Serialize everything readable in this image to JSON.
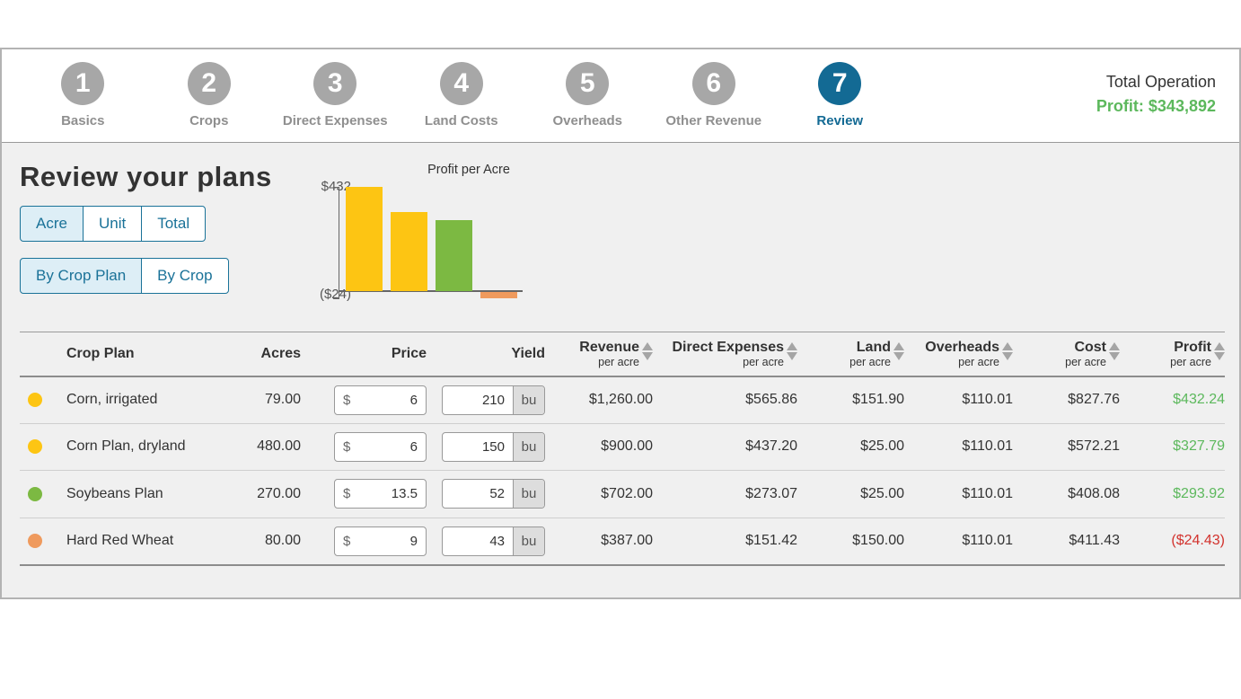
{
  "header": {
    "steps": [
      {
        "num": "1",
        "label": "Basics",
        "active": false
      },
      {
        "num": "2",
        "label": "Crops",
        "active": false
      },
      {
        "num": "3",
        "label": "Direct Expenses",
        "active": false
      },
      {
        "num": "4",
        "label": "Land Costs",
        "active": false
      },
      {
        "num": "5",
        "label": "Overheads",
        "active": false
      },
      {
        "num": "6",
        "label": "Other Revenue",
        "active": false
      },
      {
        "num": "7",
        "label": "Review",
        "active": true
      }
    ],
    "total_operation_label": "Total Operation",
    "total_profit_label": "Profit: $343,892"
  },
  "content": {
    "title": "Review your plans",
    "view_toggle": {
      "options": [
        "Acre",
        "Unit",
        "Total"
      ],
      "selected": "Acre"
    },
    "group_toggle": {
      "options": [
        "By Crop Plan",
        "By Crop"
      ],
      "selected": "By Crop Plan"
    }
  },
  "chart_data": {
    "type": "bar",
    "title": "Profit per Acre",
    "categories": [
      "Corn, irrigated",
      "Corn Plan, dryland",
      "Soybeans Plan",
      "Hard Red Wheat"
    ],
    "values": [
      432.24,
      327.79,
      293.92,
      -24.43
    ],
    "bar_colors": [
      "#fdc513",
      "#fdc513",
      "#7cb942",
      "#ef9a5d"
    ],
    "y_top_label": "$432",
    "y_bottom_label": "($24)",
    "ylim": [
      -24,
      432
    ],
    "grid": false,
    "legend": "none"
  },
  "table": {
    "columns": {
      "crop_plan": {
        "label": "Crop Plan"
      },
      "acres": {
        "label": "Acres"
      },
      "price": {
        "label": "Price"
      },
      "yield": {
        "label": "Yield"
      },
      "revenue": {
        "label": "Revenue",
        "sub": "per acre"
      },
      "direct_expenses": {
        "label": "Direct Expenses",
        "sub": "per acre"
      },
      "land": {
        "label": "Land",
        "sub": "per acre"
      },
      "overheads": {
        "label": "Overheads",
        "sub": "per acre"
      },
      "cost": {
        "label": "Cost",
        "sub": "per acre"
      },
      "profit": {
        "label": "Profit",
        "sub": "per acre"
      }
    },
    "rows": [
      {
        "color": "#fdc513",
        "name": "Corn, irrigated",
        "acres": "79.00",
        "price_prefix": "$",
        "price": "6",
        "yield": "210",
        "yield_unit": "bu",
        "revenue": "$1,260.00",
        "direct_expenses": "$565.86",
        "land": "$151.90",
        "overheads": "$110.01",
        "cost": "$827.76",
        "profit": "$432.24"
      },
      {
        "color": "#fdc513",
        "name": "Corn Plan, dryland",
        "acres": "480.00",
        "price_prefix": "$",
        "price": "6",
        "yield": "150",
        "yield_unit": "bu",
        "revenue": "$900.00",
        "direct_expenses": "$437.20",
        "land": "$25.00",
        "overheads": "$110.01",
        "cost": "$572.21",
        "profit": "$327.79"
      },
      {
        "color": "#7cb942",
        "name": "Soybeans Plan",
        "acres": "270.00",
        "price_prefix": "$",
        "price": "13.5",
        "yield": "52",
        "yield_unit": "bu",
        "revenue": "$702.00",
        "direct_expenses": "$273.07",
        "land": "$25.00",
        "overheads": "$110.01",
        "cost": "$408.08",
        "profit": "$293.92"
      },
      {
        "color": "#ef9a5d",
        "name": "Hard Red Wheat",
        "acres": "80.00",
        "price_prefix": "$",
        "price": "9",
        "yield": "43",
        "yield_unit": "bu",
        "revenue": "$387.00",
        "direct_expenses": "$151.42",
        "land": "$150.00",
        "overheads": "$110.01",
        "cost": "$411.43",
        "profit": "($24.43)"
      }
    ]
  },
  "colors": {
    "accent_teal": "#136a94",
    "profit_green": "#5cb85c",
    "loss_red": "#d2322d",
    "step_gray": "#a7a7a7",
    "selected_btn_bg": "#ddeef6"
  }
}
